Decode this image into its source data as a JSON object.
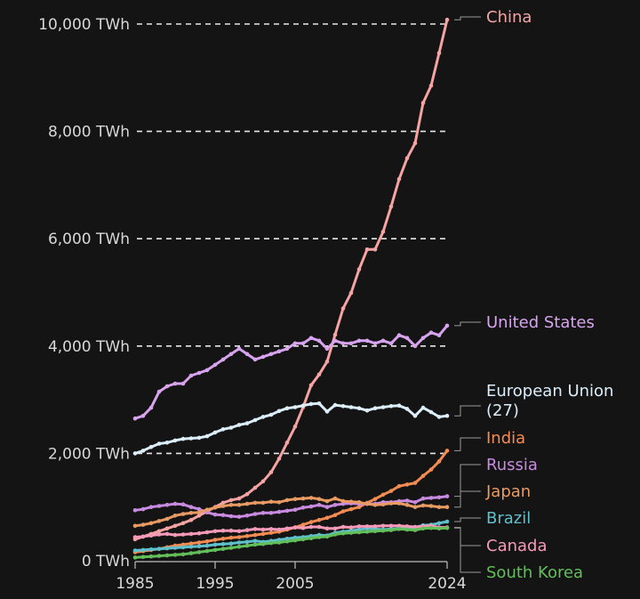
{
  "chart_data": {
    "type": "line",
    "title": "",
    "xlabel": "",
    "ylabel": "",
    "ylim": [
      0,
      10000
    ],
    "xlim": [
      1985,
      2024
    ],
    "grid": true,
    "legend": "right-end labels",
    "y_ticks": [
      {
        "value": 0,
        "label": "0 TWh"
      },
      {
        "value": 2000,
        "label": "2,000 TWh"
      },
      {
        "value": 4000,
        "label": "4,000 TWh"
      },
      {
        "value": 6000,
        "label": "6,000 TWh"
      },
      {
        "value": 8000,
        "label": "8,000 TWh"
      },
      {
        "value": 10000,
        "label": "10,000 TWh"
      }
    ],
    "x_ticks": [
      {
        "value": 1985,
        "label": "1985"
      },
      {
        "value": 1995,
        "label": "1995"
      },
      {
        "value": 2005,
        "label": "2005"
      },
      {
        "value": 2024,
        "label": "2024"
      }
    ],
    "x": [
      1985,
      1986,
      1987,
      1988,
      1989,
      1990,
      1991,
      1992,
      1993,
      1994,
      1995,
      1996,
      1997,
      1998,
      1999,
      2000,
      2001,
      2002,
      2003,
      2004,
      2005,
      2006,
      2007,
      2008,
      2009,
      2010,
      2011,
      2012,
      2013,
      2014,
      2015,
      2016,
      2017,
      2018,
      2019,
      2020,
      2021,
      2022,
      2023,
      2024
    ],
    "series": [
      {
        "name": "China",
        "color": "#f5a3a3",
        "values": [
          400,
          450,
          500,
          550,
          600,
          650,
          700,
          760,
          840,
          920,
          1000,
          1080,
          1130,
          1160,
          1240,
          1360,
          1480,
          1650,
          1900,
          2200,
          2500,
          2860,
          3270,
          3470,
          3710,
          4210,
          4700,
          4990,
          5430,
          5800,
          5800,
          6130,
          6600,
          7110,
          7500,
          7780,
          8530,
          8850,
          9460,
          10080
        ]
      },
      {
        "name": "United States",
        "color": "#d8a4f0",
        "values": [
          2650,
          2700,
          2850,
          3150,
          3250,
          3300,
          3300,
          3450,
          3500,
          3550,
          3650,
          3750,
          3850,
          3950,
          3850,
          3750,
          3800,
          3850,
          3900,
          3950,
          4050,
          4050,
          4150,
          4100,
          3950,
          4100,
          4050,
          4050,
          4100,
          4100,
          4050,
          4100,
          4050,
          4200,
          4150,
          4000,
          4150,
          4250,
          4200,
          4380
        ]
      },
      {
        "name": "European Union\n(27)",
        "color": "#dbeefa",
        "values": [
          2000,
          2050,
          2120,
          2180,
          2200,
          2240,
          2270,
          2280,
          2290,
          2320,
          2390,
          2450,
          2480,
          2530,
          2560,
          2620,
          2680,
          2720,
          2790,
          2840,
          2860,
          2890,
          2920,
          2930,
          2780,
          2900,
          2880,
          2860,
          2840,
          2800,
          2840,
          2860,
          2880,
          2890,
          2830,
          2700,
          2850,
          2770,
          2680,
          2700
        ]
      },
      {
        "name": "India",
        "color": "#f28c52",
        "values": [
          160,
          180,
          200,
          220,
          250,
          280,
          300,
          320,
          340,
          360,
          390,
          410,
          430,
          440,
          460,
          480,
          500,
          520,
          540,
          580,
          620,
          670,
          720,
          760,
          800,
          850,
          920,
          960,
          1000,
          1080,
          1150,
          1230,
          1300,
          1390,
          1420,
          1450,
          1580,
          1700,
          1850,
          2050
        ]
      },
      {
        "name": "Russia",
        "color": "#c98be0",
        "values": [
          940,
          960,
          1000,
          1020,
          1040,
          1060,
          1050,
          1000,
          960,
          900,
          860,
          850,
          830,
          820,
          840,
          870,
          890,
          890,
          910,
          930,
          950,
          990,
          1010,
          1040,
          1000,
          1040,
          1060,
          1070,
          1060,
          1060,
          1060,
          1090,
          1090,
          1110,
          1120,
          1090,
          1160,
          1170,
          1180,
          1200
        ]
      },
      {
        "name": "Japan",
        "color": "#e89b63",
        "values": [
          650,
          670,
          700,
          740,
          780,
          840,
          870,
          890,
          900,
          950,
          990,
          1020,
          1040,
          1040,
          1060,
          1080,
          1080,
          1100,
          1090,
          1130,
          1150,
          1160,
          1170,
          1150,
          1110,
          1160,
          1110,
          1100,
          1090,
          1060,
          1040,
          1050,
          1070,
          1070,
          1040,
          1000,
          1030,
          1020,
          1000,
          1000
        ]
      },
      {
        "name": "Brazil",
        "color": "#5fc0cc",
        "values": [
          190,
          200,
          210,
          220,
          230,
          240,
          250,
          260,
          270,
          280,
          300,
          310,
          320,
          340,
          350,
          370,
          350,
          370,
          390,
          410,
          430,
          440,
          460,
          480,
          470,
          520,
          540,
          560,
          580,
          600,
          590,
          580,
          590,
          600,
          620,
          620,
          660,
          670,
          700,
          730
        ]
      },
      {
        "name": "Canada",
        "color": "#f59ab8",
        "values": [
          440,
          450,
          470,
          490,
          500,
          480,
          490,
          500,
          510,
          530,
          550,
          560,
          560,
          550,
          570,
          590,
          580,
          590,
          580,
          600,
          620,
          610,
          630,
          630,
          600,
          600,
          630,
          620,
          640,
          640,
          640,
          650,
          650,
          650,
          640,
          630,
          640,
          650,
          620,
          620
        ]
      },
      {
        "name": "South Korea",
        "color": "#63bf5a",
        "values": [
          60,
          70,
          80,
          90,
          100,
          110,
          120,
          140,
          160,
          180,
          200,
          220,
          240,
          260,
          280,
          300,
          310,
          330,
          340,
          360,
          380,
          400,
          420,
          440,
          450,
          490,
          510,
          520,
          530,
          540,
          550,
          560,
          570,
          590,
          580,
          570,
          600,
          610,
          600,
          610
        ]
      }
    ]
  }
}
